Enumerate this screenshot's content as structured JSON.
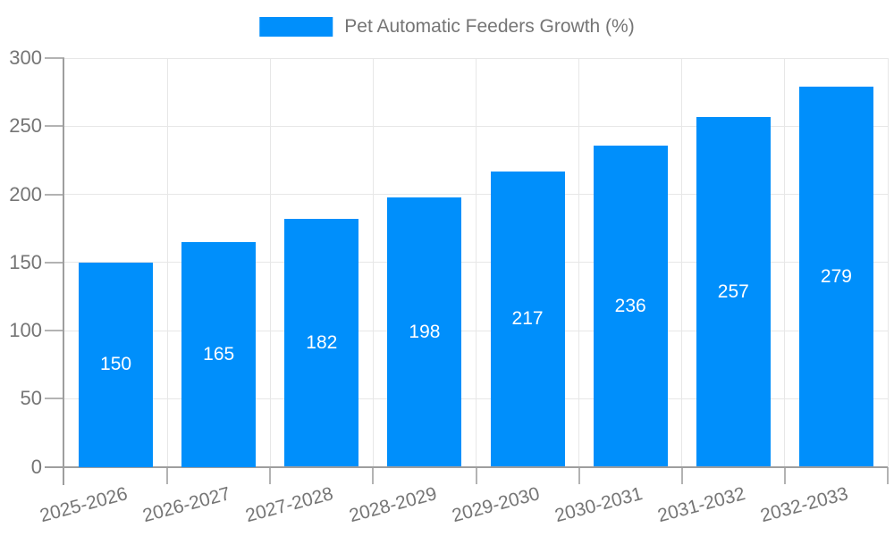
{
  "legend": {
    "label": "Pet Automatic Feeders Growth (%)"
  },
  "chart_data": {
    "type": "bar",
    "title": "Pet Automatic Feeders Growth (%)",
    "categories": [
      "2025-2026",
      "2026-2027",
      "2027-2028",
      "2028-2029",
      "2029-2030",
      "2030-2031",
      "2031-2032",
      "2032-2033"
    ],
    "values": [
      150,
      165,
      182,
      198,
      217,
      236,
      257,
      279
    ],
    "xlabel": "",
    "ylabel": "",
    "ylim": [
      0,
      300
    ],
    "yticks": [
      0,
      50,
      100,
      150,
      200,
      250,
      300
    ],
    "grid": true,
    "legend_position": "top-center",
    "value_labels": "inside-center",
    "x_label_rotation_deg": -15
  },
  "colors": {
    "bar": "#008FFB",
    "grid": "#e7e7e7",
    "tick": "#b3b3b3",
    "axis": "#9e9e9e",
    "label_text": "#757575",
    "value_text": "#ffffff",
    "background": "#ffffff"
  }
}
